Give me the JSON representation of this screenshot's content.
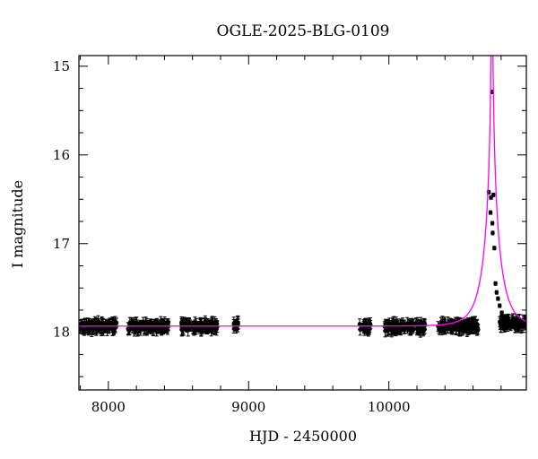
{
  "chart_data": {
    "type": "scatter",
    "title": "OGLE-2025-BLG-0109",
    "xlabel": "HJD - 2450000",
    "ylabel": "I magnitude",
    "xlim": [
      7790,
      10980
    ],
    "ylim": [
      18.65,
      14.88
    ],
    "y_inverted": true,
    "grid": false,
    "x_ticks": {
      "major": [
        8000,
        9000,
        10000
      ],
      "labels": [
        "8000",
        "9000",
        "10000"
      ]
    },
    "y_ticks": {
      "major": [
        15,
        16,
        17,
        18
      ],
      "labels": [
        "15",
        "16",
        "17",
        "18"
      ]
    },
    "colors": {
      "data": "#000000",
      "model": "#ff00ff"
    },
    "series": [
      {
        "kind": "points-with-errorbars",
        "baseline_mag": 17.93,
        "seasons": [
          {
            "x_range": [
              7800,
              8060
            ],
            "mag": 17.93
          },
          {
            "x_range": [
              8140,
              8430
            ],
            "mag": 17.93
          },
          {
            "x_range": [
              8520,
              8780
            ],
            "mag": 17.93
          },
          {
            "x_range": [
              8890,
              8930
            ],
            "mag": 17.92
          },
          {
            "x_range": [
              9790,
              9870
            ],
            "mag": 17.94
          },
          {
            "x_range": [
              9970,
              10260
            ],
            "mag": 17.94
          },
          {
            "x_range": [
              10350,
              10640
            ],
            "mag": 17.93
          },
          {
            "x_range": [
              10790,
              10980
            ],
            "mag": 17.9
          }
        ],
        "event_points": [
          {
            "x": 10712,
            "y": 16.42
          },
          {
            "x": 10725,
            "y": 16.65
          },
          {
            "x": 10728,
            "y": 16.48
          },
          {
            "x": 10735,
            "y": 15.29
          },
          {
            "x": 10738,
            "y": 16.77
          },
          {
            "x": 10740,
            "y": 16.88
          },
          {
            "x": 10745,
            "y": 16.45
          },
          {
            "x": 10752,
            "y": 17.05
          },
          {
            "x": 10760,
            "y": 17.45
          },
          {
            "x": 10768,
            "y": 17.55
          },
          {
            "x": 10778,
            "y": 17.62
          },
          {
            "x": 10790,
            "y": 17.7
          },
          {
            "x": 10805,
            "y": 17.78
          },
          {
            "x": 10820,
            "y": 17.82
          },
          {
            "x": 10840,
            "y": 17.86
          }
        ]
      },
      {
        "kind": "model-curve",
        "baseline_mag": 17.93,
        "t0": 10735,
        "peak_mag": 14.6,
        "tE": 115,
        "u0": 0.0065
      }
    ]
  }
}
